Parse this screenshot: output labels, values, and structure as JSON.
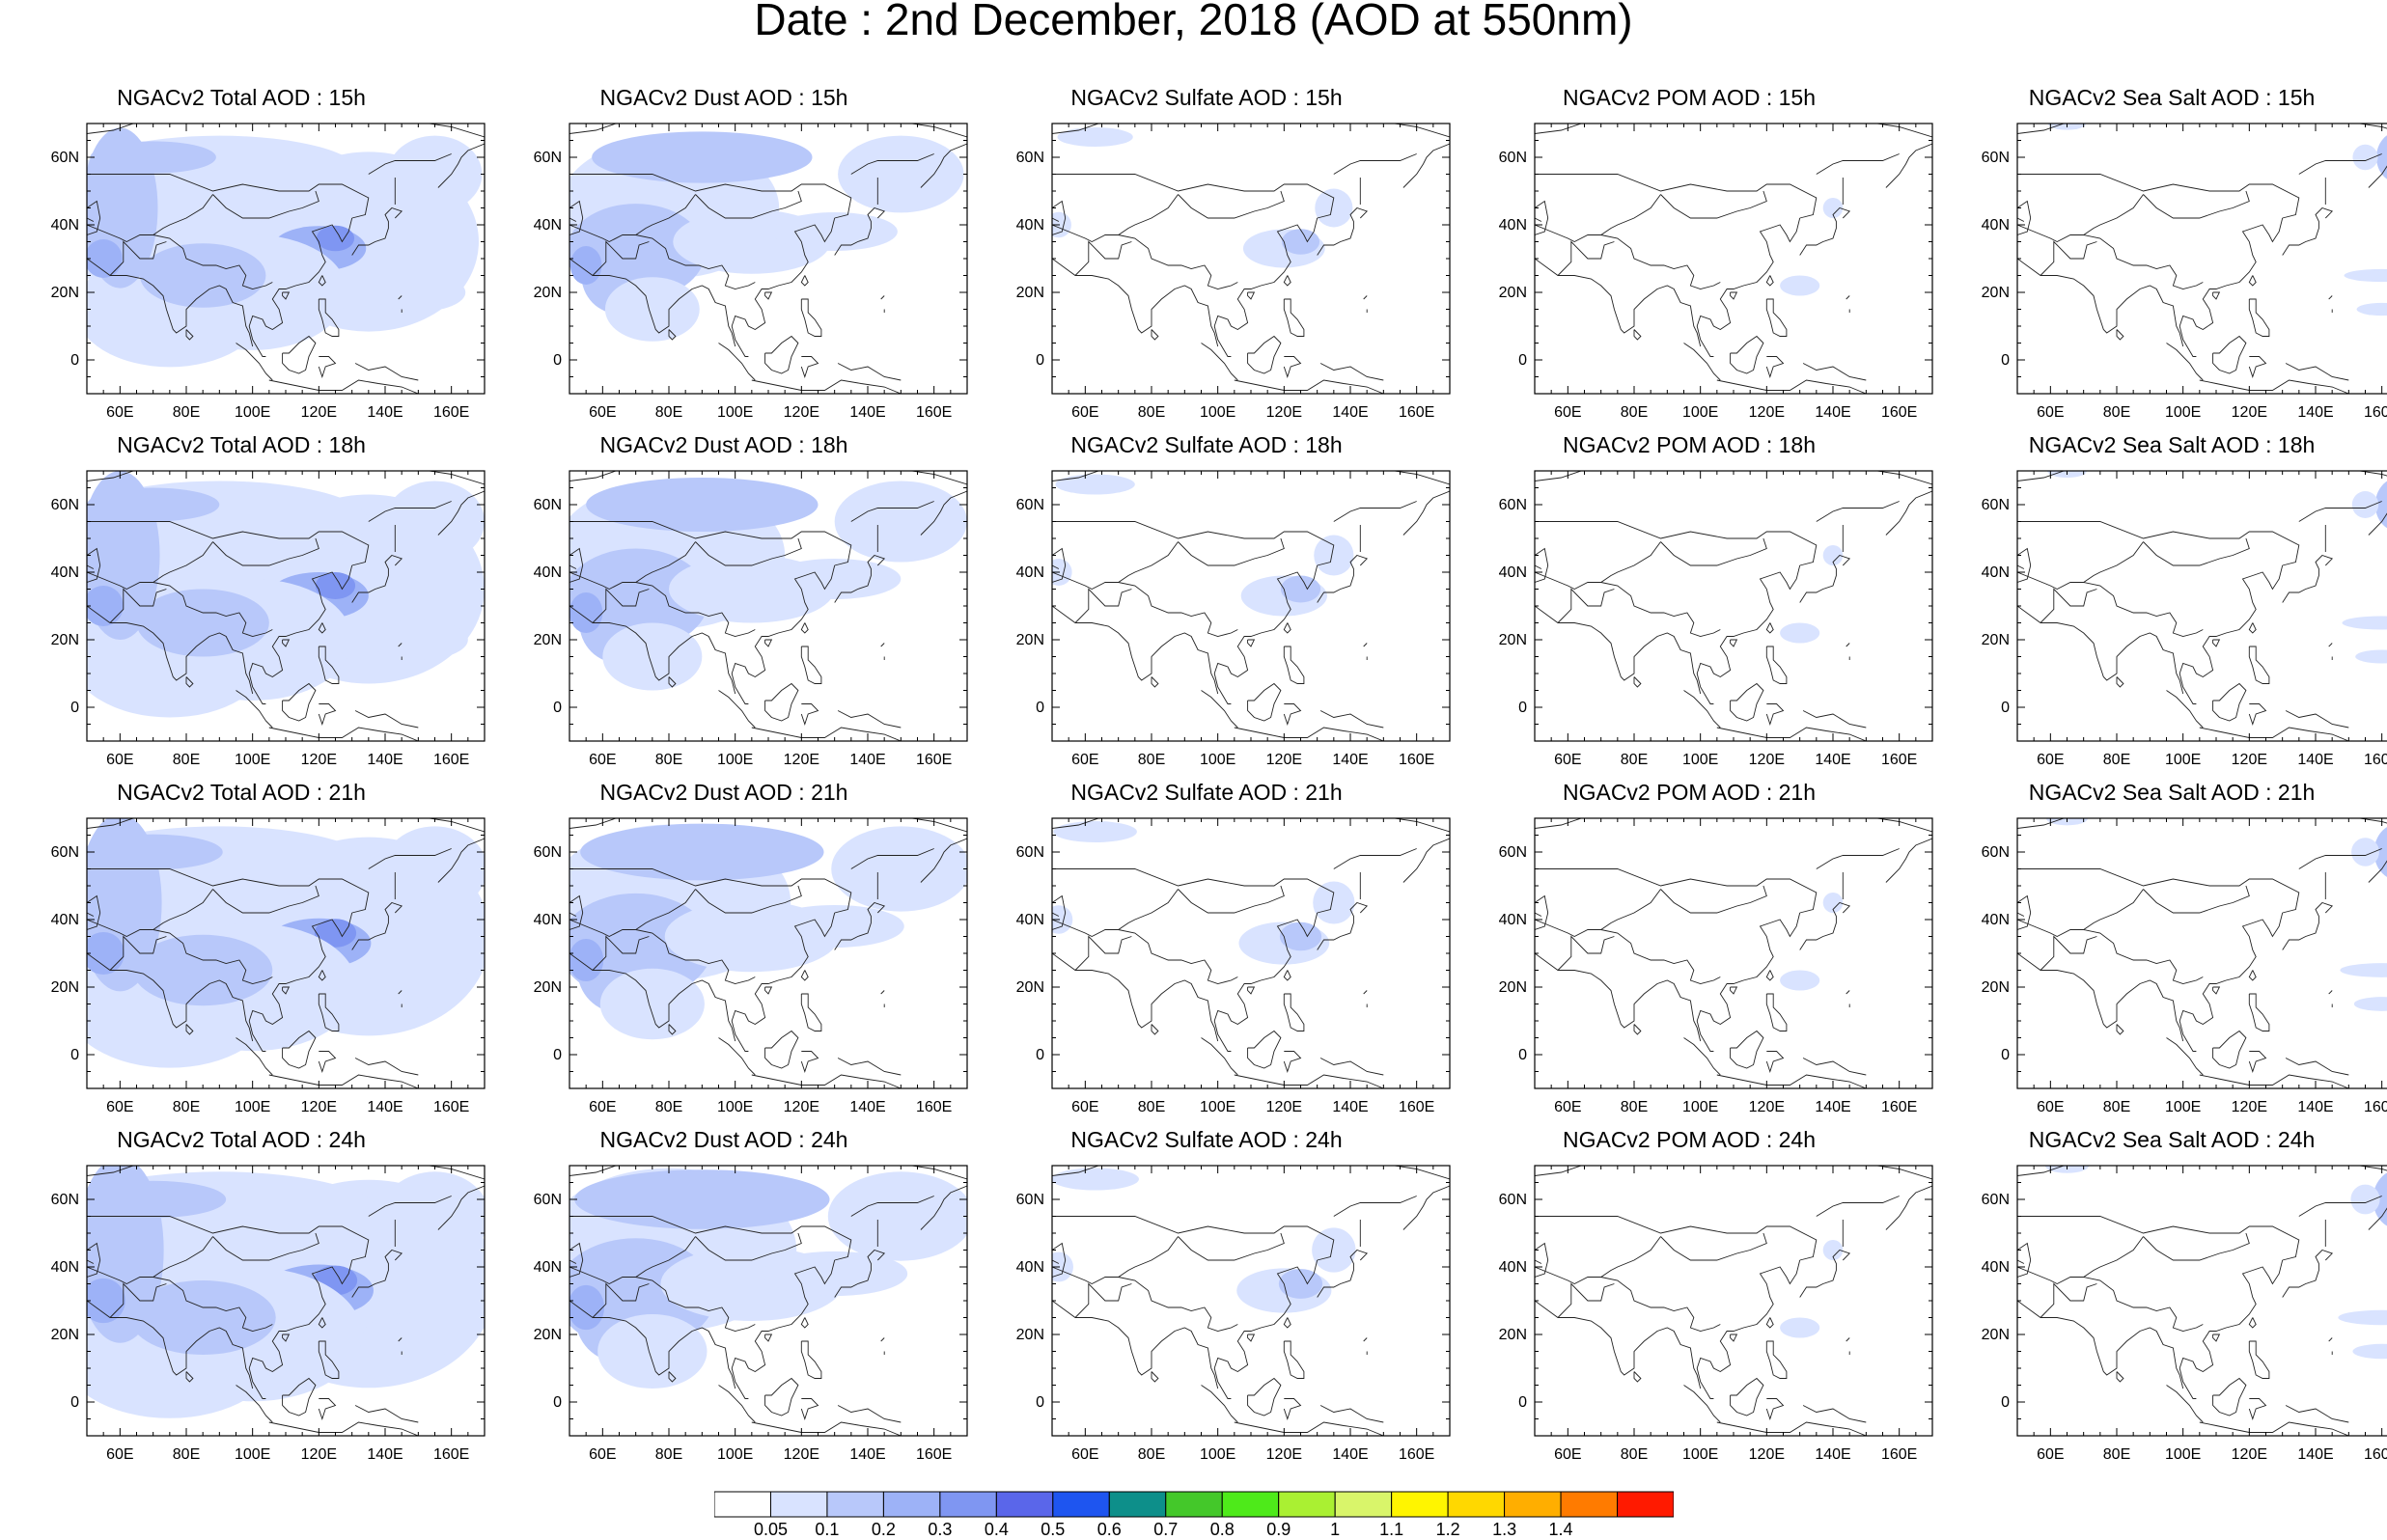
{
  "title": "Date : 2nd December, 2018 (AOD at 550nm)",
  "lon_ticks": [
    "60E",
    "80E",
    "100E",
    "120E",
    "140E",
    "160E"
  ],
  "lat_ticks": [
    "60N",
    "40N",
    "20N",
    "0"
  ],
  "panels": [
    {
      "title": "NGACv2 Total AOD : 15h",
      "species": "total",
      "hour": 15
    },
    {
      "title": "NGACv2 Dust AOD : 15h",
      "species": "dust",
      "hour": 15
    },
    {
      "title": "NGACv2 Sulfate AOD : 15h",
      "species": "sulfate",
      "hour": 15
    },
    {
      "title": "NGACv2 POM AOD : 15h",
      "species": "pom",
      "hour": 15
    },
    {
      "title": "NGACv2 Sea Salt AOD : 15h",
      "species": "seasalt",
      "hour": 15
    },
    {
      "title": "NGACv2 Total AOD : 18h",
      "species": "total",
      "hour": 18
    },
    {
      "title": "NGACv2 Dust AOD : 18h",
      "species": "dust",
      "hour": 18
    },
    {
      "title": "NGACv2 Sulfate AOD : 18h",
      "species": "sulfate",
      "hour": 18
    },
    {
      "title": "NGACv2 POM AOD : 18h",
      "species": "pom",
      "hour": 18
    },
    {
      "title": "NGACv2 Sea Salt AOD : 18h",
      "species": "seasalt",
      "hour": 18
    },
    {
      "title": "NGACv2 Total AOD : 21h",
      "species": "total",
      "hour": 21
    },
    {
      "title": "NGACv2 Dust AOD : 21h",
      "species": "dust",
      "hour": 21
    },
    {
      "title": "NGACv2 Sulfate AOD : 21h",
      "species": "sulfate",
      "hour": 21
    },
    {
      "title": "NGACv2 POM AOD : 21h",
      "species": "pom",
      "hour": 21
    },
    {
      "title": "NGACv2 Sea Salt AOD : 21h",
      "species": "seasalt",
      "hour": 21
    },
    {
      "title": "NGACv2 Total AOD : 24h",
      "species": "total",
      "hour": 24
    },
    {
      "title": "NGACv2 Dust AOD : 24h",
      "species": "dust",
      "hour": 24
    },
    {
      "title": "NGACv2 Sulfate AOD : 24h",
      "species": "sulfate",
      "hour": 24
    },
    {
      "title": "NGACv2 POM AOD : 24h",
      "species": "pom",
      "hour": 24
    },
    {
      "title": "NGACv2 Sea Salt  AOD : 24h",
      "species": "seasalt",
      "hour": 24
    }
  ],
  "colorbar": {
    "colors": [
      "#ffffff",
      "#d9e3ff",
      "#b8c8fa",
      "#9db2f7",
      "#7f96f2",
      "#5a66ea",
      "#1e55f0",
      "#0d8f8a",
      "#44c82a",
      "#4eea1a",
      "#aaf032",
      "#d9f56a",
      "#fff500",
      "#ffd800",
      "#ffae00",
      "#ff7b00",
      "#ff1a00"
    ],
    "labels": [
      "0.05",
      "0.1",
      "0.2",
      "0.3",
      "0.4",
      "0.5",
      "0.6",
      "0.7",
      "0.8",
      "0.9",
      "1",
      "1.1",
      "1.2",
      "1.3",
      "1.4"
    ]
  }
}
